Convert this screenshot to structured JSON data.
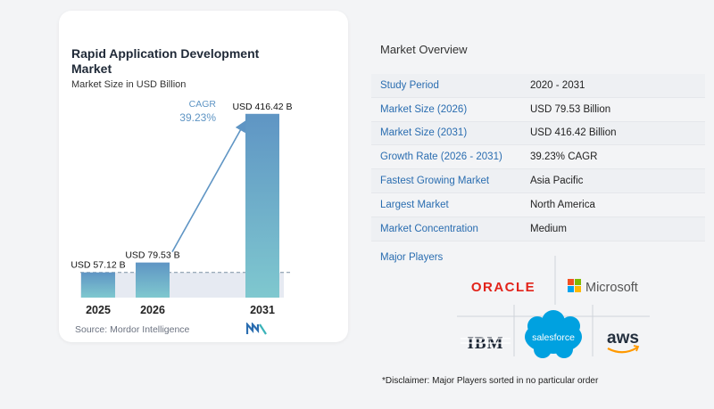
{
  "chart_data": {
    "type": "bar",
    "title": "Rapid Application Development Market",
    "subtitle": "Market Size in USD Billion",
    "categories": [
      "2025",
      "2026",
      "2031"
    ],
    "values": [
      57.12,
      79.53,
      416.42
    ],
    "value_labels": [
      "USD 57.12 B",
      "USD 79.53 B",
      "USD 416.42 B"
    ],
    "cagr_label": "CAGR",
    "cagr_value": "39.23%",
    "ylim": [
      0,
      420
    ],
    "grid": false,
    "colors": {
      "bar_top": "#5f95c4",
      "bar_bottom": "#7fc8cf",
      "arrow": "#5f95c4",
      "dash": "#7a8fa3"
    }
  },
  "source": "Source:  Mordor Intelligence",
  "overview": {
    "title": "Market Overview",
    "rows": [
      {
        "key": "Study Period",
        "value": "2020 - 2031"
      },
      {
        "key": "Market Size (2026)",
        "value": "USD 79.53 Billion"
      },
      {
        "key": "Market Size (2031)",
        "value": "USD 416.42 Billion"
      },
      {
        "key": "Growth Rate (2026 - 2031)",
        "value": "39.23% CAGR"
      },
      {
        "key": "Fastest Growing Market",
        "value": "Asia Pacific"
      },
      {
        "key": "Largest Market",
        "value": "North America"
      },
      {
        "key": "Market Concentration",
        "value": "Medium"
      }
    ]
  },
  "players": {
    "title": "Major Players",
    "logos": {
      "oracle": "ORACLE",
      "microsoft": "Microsoft",
      "ibm": "IBM",
      "salesforce": "salesforce",
      "aws": "aws"
    },
    "colors": {
      "oracle": "#e2231a",
      "salesforce": "#00a1e0",
      "aws_smile": "#ff9900"
    }
  },
  "disclaimer": "*Disclaimer: Major Players sorted in no particular order"
}
